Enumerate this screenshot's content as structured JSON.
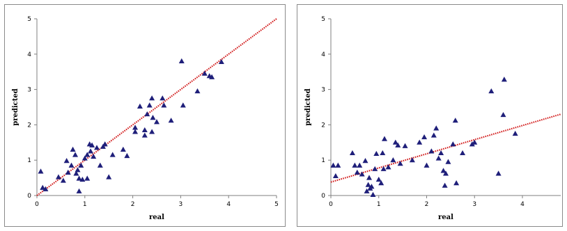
{
  "chart_data": [
    {
      "type": "scatter",
      "xlabel": "real",
      "ylabel": "predicted",
      "xlim": [
        0,
        5
      ],
      "ylim": [
        0,
        5
      ],
      "xticks": [
        "0",
        "1",
        "2",
        "3",
        "4",
        "5"
      ],
      "yticks": [
        "0",
        "1",
        "2",
        "3",
        "4",
        "5"
      ],
      "trendline": [
        [
          0,
          0
        ],
        [
          5,
          5
        ]
      ],
      "colors": {
        "points": "#1f1f7a",
        "trendline": "#d32020"
      },
      "points": [
        [
          0.08,
          0.68
        ],
        [
          0.12,
          0.22
        ],
        [
          0.18,
          0.18
        ],
        [
          0.45,
          0.52
        ],
        [
          0.55,
          0.42
        ],
        [
          0.62,
          0.98
        ],
        [
          0.65,
          0.65
        ],
        [
          0.72,
          0.85
        ],
        [
          0.75,
          1.3
        ],
        [
          0.8,
          1.15
        ],
        [
          0.82,
          0.62
        ],
        [
          0.85,
          0.72
        ],
        [
          0.88,
          0.12
        ],
        [
          0.88,
          0.48
        ],
        [
          0.92,
          0.85
        ],
        [
          0.95,
          0.45
        ],
        [
          1.0,
          1.05
        ],
        [
          1.05,
          0.48
        ],
        [
          1.05,
          1.15
        ],
        [
          1.1,
          1.45
        ],
        [
          1.12,
          1.25
        ],
        [
          1.15,
          1.42
        ],
        [
          1.18,
          1.1
        ],
        [
          1.25,
          1.35
        ],
        [
          1.32,
          0.85
        ],
        [
          1.38,
          1.38
        ],
        [
          1.42,
          1.45
        ],
        [
          1.5,
          0.52
        ],
        [
          1.58,
          1.15
        ],
        [
          1.8,
          1.3
        ],
        [
          1.88,
          1.12
        ],
        [
          2.05,
          1.92
        ],
        [
          2.05,
          1.8
        ],
        [
          2.15,
          2.52
        ],
        [
          2.25,
          1.7
        ],
        [
          2.25,
          1.85
        ],
        [
          2.3,
          2.3
        ],
        [
          2.35,
          2.55
        ],
        [
          2.4,
          2.75
        ],
        [
          2.4,
          1.8
        ],
        [
          2.42,
          2.2
        ],
        [
          2.5,
          2.08
        ],
        [
          2.62,
          2.75
        ],
        [
          2.65,
          2.55
        ],
        [
          2.8,
          2.12
        ],
        [
          3.02,
          3.8
        ],
        [
          3.05,
          2.55
        ],
        [
          3.35,
          2.95
        ],
        [
          3.5,
          3.45
        ],
        [
          3.6,
          3.38
        ],
        [
          3.65,
          3.35
        ],
        [
          3.85,
          3.78
        ]
      ]
    },
    {
      "type": "scatter",
      "xlabel": "real",
      "ylabel": "predicted",
      "xlim": [
        0,
        4.8
      ],
      "ylim": [
        0,
        5
      ],
      "xticks": [
        "0",
        "1",
        "2",
        "3",
        "4"
      ],
      "yticks": [
        "0",
        "1",
        "2",
        "3",
        "4",
        "5"
      ],
      "trendline": [
        [
          0,
          0.38
        ],
        [
          4.8,
          2.3
        ]
      ],
      "colors": {
        "points": "#1f1f7a",
        "trendline": "#d32020"
      },
      "points": [
        [
          0.05,
          0.85
        ],
        [
          0.1,
          0.55
        ],
        [
          0.15,
          0.85
        ],
        [
          0.45,
          1.2
        ],
        [
          0.5,
          0.85
        ],
        [
          0.55,
          0.65
        ],
        [
          0.6,
          0.85
        ],
        [
          0.65,
          0.6
        ],
        [
          0.72,
          0.98
        ],
        [
          0.75,
          0.12
        ],
        [
          0.78,
          0.3
        ],
        [
          0.8,
          0.5
        ],
        [
          0.82,
          0.2
        ],
        [
          0.85,
          0.25
        ],
        [
          0.88,
          0.02
        ],
        [
          0.92,
          0.75
        ],
        [
          0.95,
          1.18
        ],
        [
          1.0,
          0.45
        ],
        [
          1.05,
          0.35
        ],
        [
          1.08,
          1.2
        ],
        [
          1.1,
          0.75
        ],
        [
          1.12,
          1.6
        ],
        [
          1.2,
          0.8
        ],
        [
          1.3,
          1.0
        ],
        [
          1.35,
          1.5
        ],
        [
          1.4,
          1.42
        ],
        [
          1.45,
          0.9
        ],
        [
          1.55,
          1.4
        ],
        [
          1.7,
          1.0
        ],
        [
          1.85,
          1.5
        ],
        [
          1.95,
          1.65
        ],
        [
          2.0,
          0.85
        ],
        [
          2.1,
          1.25
        ],
        [
          2.15,
          1.7
        ],
        [
          2.2,
          1.9
        ],
        [
          2.25,
          1.05
        ],
        [
          2.3,
          1.2
        ],
        [
          2.35,
          0.7
        ],
        [
          2.38,
          0.28
        ],
        [
          2.4,
          0.62
        ],
        [
          2.45,
          0.95
        ],
        [
          2.55,
          1.45
        ],
        [
          2.6,
          2.12
        ],
        [
          2.62,
          0.35
        ],
        [
          2.75,
          1.2
        ],
        [
          2.95,
          1.45
        ],
        [
          3.0,
          1.5
        ],
        [
          3.35,
          2.95
        ],
        [
          3.5,
          0.62
        ],
        [
          3.6,
          2.28
        ],
        [
          3.62,
          3.28
        ],
        [
          3.85,
          1.75
        ]
      ]
    }
  ]
}
